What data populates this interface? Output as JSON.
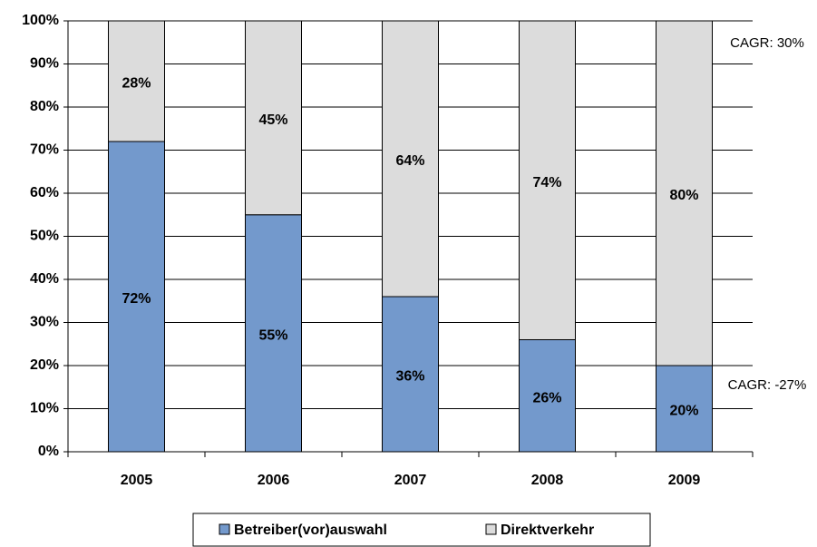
{
  "chart_data": {
    "type": "stacked_bar",
    "categories": [
      "2005",
      "2006",
      "2007",
      "2008",
      "2009"
    ],
    "series": [
      {
        "name": "Betreiber(vor)auswahl",
        "color": "#7399cc",
        "values": [
          72,
          55,
          36,
          26,
          20
        ],
        "value_labels": [
          "72%",
          "55%",
          "36%",
          "26%",
          "20%"
        ]
      },
      {
        "name": "Direktverkehr",
        "color": "#dcdcdc",
        "values": [
          28,
          45,
          64,
          74,
          80
        ],
        "value_labels": [
          "28%",
          "45%",
          "64%",
          "74%",
          "80%"
        ]
      }
    ],
    "ylim": [
      0,
      100
    ],
    "yticks": [
      {
        "value": 0,
        "label": "0%"
      },
      {
        "value": 10,
        "label": "10%"
      },
      {
        "value": 20,
        "label": "20%"
      },
      {
        "value": 30,
        "label": "30%"
      },
      {
        "value": 40,
        "label": "40%"
      },
      {
        "value": 50,
        "label": "50%"
      },
      {
        "value": 60,
        "label": "60%"
      },
      {
        "value": 70,
        "label": "70%"
      },
      {
        "value": 80,
        "label": "80%"
      },
      {
        "value": 90,
        "label": "90%"
      },
      {
        "value": 100,
        "label": "100%"
      }
    ],
    "grid": true,
    "annotations": [
      "CAGR: 30%",
      "CAGR: -27%"
    ],
    "legend": "bottom"
  }
}
